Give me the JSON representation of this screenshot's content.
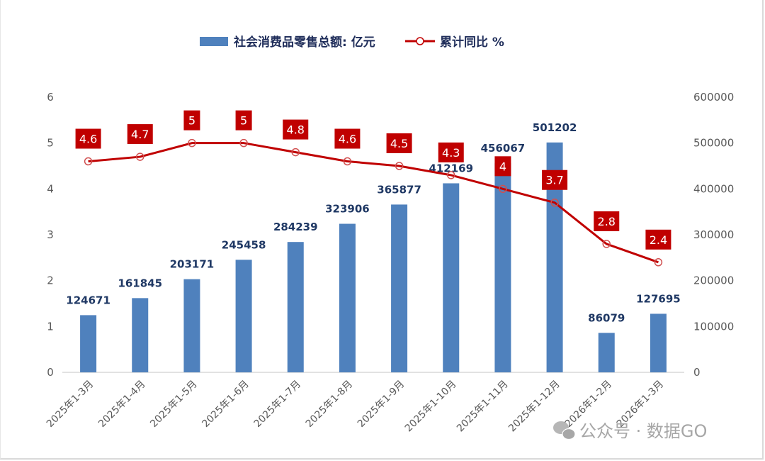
{
  "chart_data": {
    "type": "bar+line",
    "categories": [
      "2025年1-3月",
      "2025年1-4月",
      "2025年1-5月",
      "2025年1-6月",
      "2025年1-7月",
      "2025年1-8月",
      "2025年1-9月",
      "2025年1-10月",
      "2025年1-11月",
      "2025年1-12月",
      "2026年1-2月",
      "2026年1-3月"
    ],
    "series": [
      {
        "name": "社会消费品零售总额: 亿元",
        "type": "bar",
        "axis": "right",
        "values": [
          124671,
          161845,
          203171,
          245458,
          284239,
          323906,
          365877,
          412169,
          456067,
          501202,
          86079,
          127695
        ],
        "labels": [
          "124671",
          "161845",
          "203171",
          "245458",
          "284239",
          "323906",
          "365877",
          "412169",
          "456067",
          "501202",
          "86079",
          "127695"
        ]
      },
      {
        "name": "累计同比 %",
        "type": "line",
        "axis": "left",
        "values": [
          4.6,
          4.7,
          5,
          5,
          4.8,
          4.6,
          4.5,
          4.3,
          4,
          3.7,
          2.8,
          2.4
        ],
        "labels": [
          "4.6",
          "4.7",
          "5",
          "5",
          "4.8",
          "4.6",
          "4.5",
          "4.3",
          "4",
          "3.7",
          "2.8",
          "2.4"
        ]
      }
    ],
    "left_axis": {
      "ylim": [
        0,
        6
      ],
      "ticks": [
        "0",
        "1",
        "2",
        "3",
        "4",
        "5",
        "6"
      ]
    },
    "right_axis": {
      "ylim": [
        0,
        600000
      ],
      "ticks": [
        "0",
        "100000",
        "200000",
        "300000",
        "400000",
        "500000",
        "600000"
      ]
    },
    "legend_position": "top-center",
    "grid": false,
    "colors": {
      "bar": "#4f81bd",
      "line": "#c00000",
      "label_box": "#c00000",
      "bar_label": "#1f3864"
    }
  },
  "legend": {
    "bar_label": "社会消费品零售总额: 亿元",
    "line_label": "累计同比 %"
  },
  "watermark": {
    "text": "公众号 · 数据GO",
    "icon": "wechat-icon"
  }
}
